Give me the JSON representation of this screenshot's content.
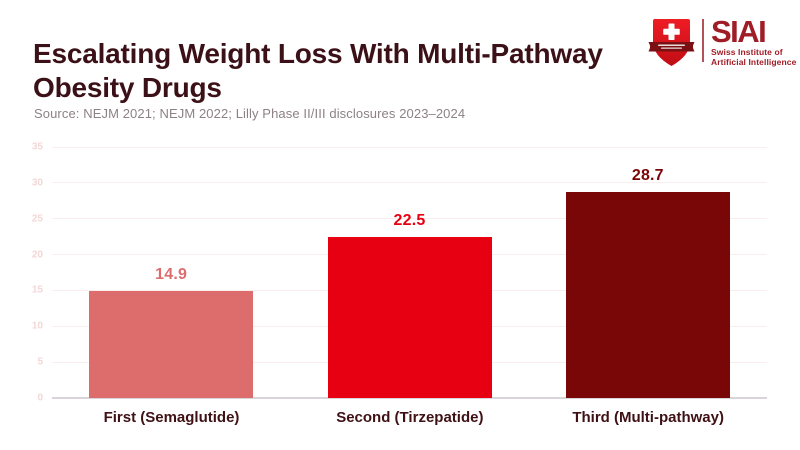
{
  "page": {
    "background": "#ffffff"
  },
  "header": {
    "title": "Escalating Weight Loss With Multi-Pathway Obesity Drugs",
    "title_color": "#3b1117",
    "source": "Source: NEJM 2021; NEJM 2022; Lilly Phase II/III disclosures 2023–2024",
    "source_color": "#8d8186"
  },
  "logo": {
    "acronym": "SIAI",
    "subtitle_line1": "Swiss Institute of",
    "subtitle_line2": "Artificial Intelligence",
    "text_color": "#9f1d26",
    "shield_red": "#e3000f",
    "banner_dark_red": "#7a1013"
  },
  "chart_data": {
    "type": "bar",
    "title": "Escalating Weight Loss With Multi-Pathway Obesity Drugs",
    "categories": [
      "First (Semaglutide)",
      "Second (Tirzepatide)",
      "Third (Multi-pathway)"
    ],
    "values": [
      14.9,
      22.5,
      28.7
    ],
    "value_labels": [
      "14.9",
      "22.5",
      "28.7"
    ],
    "bar_colors": [
      "#dd6d6d",
      "#e60012",
      "#7a0707"
    ],
    "xlabel": "",
    "ylabel": "",
    "ylim": [
      0,
      35
    ],
    "yticks": [
      0,
      5,
      10,
      15,
      20,
      25,
      30,
      35
    ],
    "grid": true,
    "legend": false,
    "gridline_color": "#f9eded",
    "axis_line_color": "#d9d4d9",
    "tick_label_color": "#f3d7d7",
    "category_label_color": "#3f1115"
  }
}
